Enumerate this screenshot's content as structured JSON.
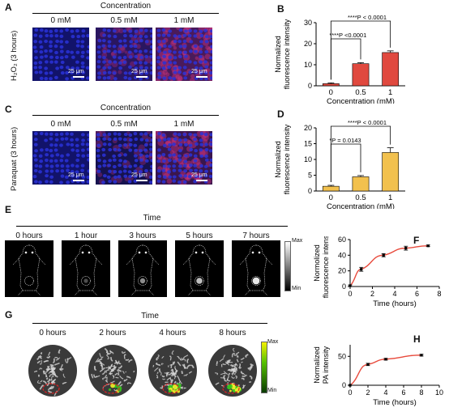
{
  "panels": {
    "A": {
      "letter": "A",
      "header": "Concentration",
      "side_label": "H₂O₂ (3 hours)",
      "columns": [
        "0 mM",
        "0.5 mM",
        "1 mM"
      ],
      "scale": "25 μm"
    },
    "C": {
      "letter": "C",
      "header": "Concentration",
      "side_label": "Paraquat (3 hours)",
      "columns": [
        "0 mM",
        "0.5 mM",
        "1 mM"
      ],
      "scale": "25 μm"
    },
    "E": {
      "letter": "E",
      "header": "Time",
      "columns": [
        "0 hours",
        "1 hour",
        "3 hours",
        "5 hours",
        "7 hours"
      ],
      "colorbar_max": "Max",
      "colorbar_min": "Min"
    },
    "G": {
      "letter": "G",
      "header": "Time",
      "columns": [
        "0 hours",
        "2 hours",
        "4 hours",
        "8 hours"
      ],
      "colorbar_max": "Max",
      "colorbar_min": "Min"
    }
  },
  "colors": {
    "bar_B": "#e0493f",
    "bar_D": "#f2c14e",
    "line": "#e84a3c",
    "nuclei": "#2a33d8",
    "red_signal": "#c3327a"
  },
  "chart_data": [
    {
      "id": "B",
      "letter": "B",
      "type": "bar",
      "categories": [
        "0",
        "0.5",
        "1"
      ],
      "values": [
        1.0,
        10.5,
        15.8
      ],
      "errors": [
        0.4,
        0.5,
        0.8
      ],
      "xlabel": "Concentration (mM)",
      "ylabel": [
        "Normalized",
        "fluorescence intensity"
      ],
      "ylim": [
        0,
        30
      ],
      "yticks": [
        "0",
        "10",
        "20",
        "30"
      ],
      "annotations": [
        "****P < 0.0001",
        "****P <0.0001"
      ]
    },
    {
      "id": "D",
      "letter": "D",
      "type": "bar",
      "categories": [
        "0",
        "0.5",
        "1"
      ],
      "values": [
        1.5,
        4.5,
        12.2
      ],
      "errors": [
        0.3,
        0.4,
        1.5
      ],
      "xlabel": "Concentration (mM)",
      "ylabel": [
        "Normalized",
        "fluorescence intensity"
      ],
      "ylim": [
        0,
        20
      ],
      "yticks": [
        "0",
        "5",
        "10",
        "15",
        "20"
      ],
      "annotations": [
        "****P < 0.0001",
        "*P = 0.0143"
      ]
    },
    {
      "id": "F",
      "letter": "F",
      "type": "line",
      "x": [
        0,
        1,
        3,
        5,
        7
      ],
      "y": [
        1,
        22,
        40,
        49,
        52
      ],
      "errors": [
        1,
        2.5,
        2,
        2.5,
        1
      ],
      "xlabel": "Time (hours)",
      "ylabel": [
        "Normolized",
        "fluorescence intensity"
      ],
      "xlim": [
        0,
        8
      ],
      "ylim": [
        0,
        60
      ],
      "xticks": [
        "0",
        "2",
        "4",
        "6",
        "8"
      ],
      "yticks": [
        "0",
        "20",
        "40",
        "60"
      ]
    },
    {
      "id": "H",
      "letter": "H",
      "type": "line",
      "x": [
        0,
        2,
        4,
        8
      ],
      "y": [
        0,
        36,
        45,
        52
      ],
      "errors": [
        0,
        2,
        1.5,
        1.5
      ],
      "xlabel": "Time (hours)",
      "ylabel": [
        "Normalized",
        "PA intensity"
      ],
      "xlim": [
        0,
        10
      ],
      "ylim": [
        0,
        70
      ],
      "xticks": [
        "0",
        "2",
        "4",
        "6",
        "8",
        "10"
      ],
      "yticks": [
        "0",
        "50"
      ]
    }
  ]
}
